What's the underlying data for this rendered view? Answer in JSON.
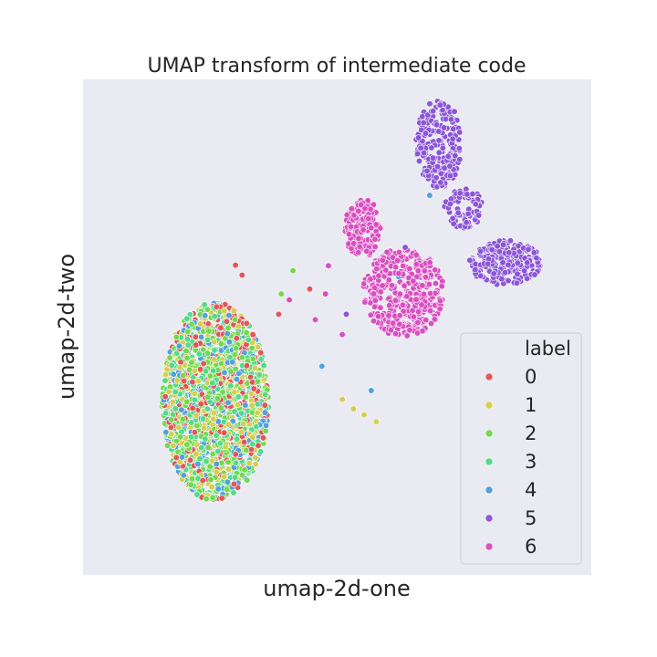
{
  "chart_data": {
    "type": "scatter",
    "title": "UMAP transform of intermediate code",
    "xlabel": "umap-2d-one",
    "ylabel": "umap-2d-two",
    "xlim": [
      0,
      100
    ],
    "ylim": [
      0,
      100
    ],
    "grid": false,
    "ticks": "hidden",
    "legend": {
      "title": "label",
      "position": "lower-right",
      "entries": [
        "0",
        "1",
        "2",
        "3",
        "4",
        "5",
        "6"
      ]
    },
    "series": [
      {
        "name": "0",
        "color": "#e0575a",
        "clusters": [
          {
            "center": [
              26,
              35
            ],
            "spread": [
              10.5,
              20
            ],
            "count": 380
          }
        ],
        "points": [
          [
            30.0,
            62.5
          ],
          [
            31.3,
            60.5
          ],
          [
            38.5,
            52.6
          ],
          [
            44.6,
            57.7
          ]
        ]
      },
      {
        "name": "1",
        "color": "#d4cf50",
        "clusters": [
          {
            "center": [
              26,
              35
            ],
            "spread": [
              10.5,
              20
            ],
            "count": 380
          }
        ],
        "points": [
          [
            51.0,
            35.4
          ],
          [
            53.2,
            33.5
          ],
          [
            55.3,
            32.3
          ],
          [
            57.7,
            30.9
          ]
        ]
      },
      {
        "name": "2",
        "color": "#72d94e",
        "clusters": [
          {
            "center": [
              26,
              35
            ],
            "spread": [
              10.5,
              20
            ],
            "count": 480
          }
        ],
        "points": [
          [
            41.3,
            61.4
          ],
          [
            39.0,
            56.7
          ]
        ]
      },
      {
        "name": "3",
        "color": "#52db8b",
        "clusters": [
          {
            "center": [
              26,
              35
            ],
            "spread": [
              10.5,
              20
            ],
            "count": 420
          }
        ],
        "points": []
      },
      {
        "name": "4",
        "color": "#55a0dc",
        "clusters": [
          {
            "center": [
              26,
              35
            ],
            "spread": [
              10.5,
              20
            ],
            "count": 300
          }
        ],
        "points": [
          [
            47.0,
            42.1
          ],
          [
            56.7,
            37.2
          ],
          [
            62.1,
            60.2
          ],
          [
            68.2,
            76.6
          ]
        ]
      },
      {
        "name": "5",
        "color": "#8b56d8",
        "clusters": [
          {
            "center": [
              70,
              87
            ],
            "spread": [
              4.5,
              9
            ],
            "count": 230
          },
          {
            "center": [
              83,
              63
            ],
            "spread": [
              7,
              4.5
            ],
            "count": 230
          },
          {
            "center": [
              75,
              74
            ],
            "spread": [
              4,
              4
            ],
            "count": 70
          }
        ],
        "points": [
          [
            51.8,
            52.6
          ],
          [
            63.4,
            66.1
          ]
        ]
      },
      {
        "name": "6",
        "color": "#d94fc0",
        "clusters": [
          {
            "center": [
              55,
              70
            ],
            "spread": [
              3.5,
              6
            ],
            "count": 170
          },
          {
            "center": [
              63,
              57
            ],
            "spread": [
              8,
              9
            ],
            "count": 380
          }
        ],
        "points": [
          [
            40.6,
            55.5
          ],
          [
            45.7,
            51.5
          ],
          [
            47.7,
            56.7
          ],
          [
            48.3,
            62.4
          ],
          [
            51.0,
            48.5
          ]
        ]
      }
    ]
  }
}
